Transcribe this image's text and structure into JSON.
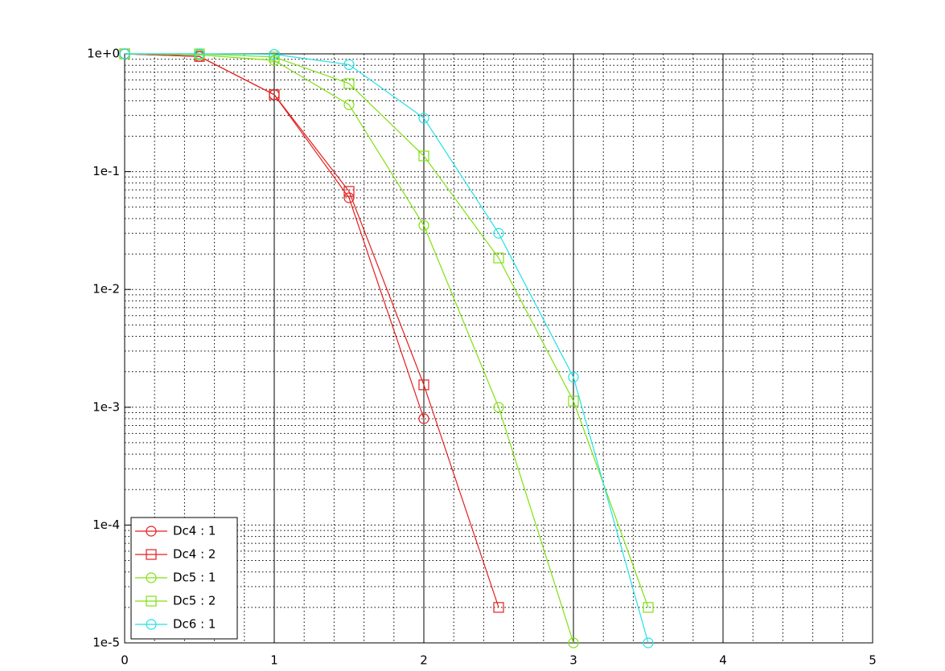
{
  "chart_data": {
    "type": "line",
    "xlim": [
      0,
      5
    ],
    "xticks": [
      0,
      1,
      2,
      3,
      4,
      5
    ],
    "x_minor_ticks": [
      0.2,
      0.4,
      0.6,
      0.8,
      1.2,
      1.4,
      1.6,
      1.8,
      2.2,
      2.4,
      2.6,
      2.8,
      3.2,
      3.4,
      3.6,
      3.8,
      4.2,
      4.4,
      4.6,
      4.8
    ],
    "ylim": [
      1e-05,
      1
    ],
    "y_scale": "log",
    "yticks": [
      {
        "value": 1,
        "label": "1e+0"
      },
      {
        "value": 0.1,
        "label": "1e-1"
      },
      {
        "value": 0.01,
        "label": "1e-2"
      },
      {
        "value": 0.001,
        "label": "1e-3"
      },
      {
        "value": 0.0001,
        "label": "1e-4"
      },
      {
        "value": 1e-05,
        "label": "1e-5"
      }
    ],
    "y_minor_ticks": [
      2e-05,
      3e-05,
      4e-05,
      5e-05,
      6e-05,
      7e-05,
      8e-05,
      9e-05,
      0.0002,
      0.0003,
      0.0004,
      0.0005,
      0.0006,
      0.0007,
      0.0008,
      0.0009,
      0.002,
      0.003,
      0.004,
      0.005,
      0.006,
      0.007,
      0.008,
      0.009,
      0.02,
      0.03,
      0.04,
      0.05,
      0.06,
      0.07,
      0.08,
      0.09,
      0.2,
      0.3,
      0.4,
      0.5,
      0.6,
      0.7,
      0.8,
      0.9
    ],
    "grid": true,
    "legend": "lower left",
    "series": [
      {
        "name": "Dc4 : 1",
        "color": "#e41e1e",
        "marker": "circle",
        "x": [
          0,
          0.5,
          1,
          1.5,
          2
        ],
        "values": [
          1,
          0.95,
          0.45,
          0.06,
          0.0008
        ]
      },
      {
        "name": "Dc4 : 2",
        "color": "#e41e1e",
        "marker": "square",
        "x": [
          0,
          0.5,
          1,
          1.5,
          2,
          2.5
        ],
        "values": [
          1,
          0.95,
          0.45,
          0.068,
          0.00155,
          2e-05
        ]
      },
      {
        "name": "Dc5 : 1",
        "color": "#80e010",
        "marker": "circle",
        "x": [
          0,
          0.5,
          1,
          1.5,
          2,
          2.5,
          3
        ],
        "values": [
          1,
          0.98,
          0.88,
          0.37,
          0.035,
          0.001,
          1e-05
        ]
      },
      {
        "name": "Dc5 : 2",
        "color": "#80e010",
        "marker": "square",
        "x": [
          0,
          0.5,
          1,
          1.5,
          2,
          2.5,
          3,
          3.5
        ],
        "values": [
          1,
          1,
          0.94,
          0.56,
          0.136,
          0.0185,
          0.00113,
          2e-05
        ]
      },
      {
        "name": "Dc6 : 1",
        "color": "#22e0e6",
        "marker": "circle",
        "x": [
          0,
          0.5,
          1,
          1.5,
          2,
          2.5,
          3,
          3.5
        ],
        "values": [
          1,
          1,
          0.99,
          0.81,
          0.285,
          0.03,
          0.0018,
          1e-05
        ]
      }
    ]
  }
}
